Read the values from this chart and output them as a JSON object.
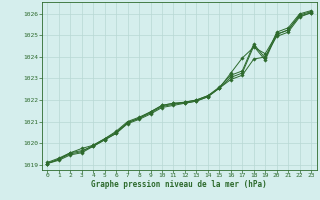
{
  "x": [
    0,
    1,
    2,
    3,
    4,
    5,
    6,
    7,
    8,
    9,
    10,
    11,
    12,
    13,
    14,
    15,
    16,
    17,
    18,
    19,
    20,
    21,
    22,
    23
  ],
  "line1": [
    1019.1,
    1019.3,
    1019.55,
    1019.65,
    1019.85,
    1020.15,
    1020.45,
    1020.95,
    1021.15,
    1021.45,
    1021.75,
    1021.85,
    1021.9,
    1022.0,
    1022.2,
    1022.55,
    1022.95,
    1023.15,
    1023.9,
    1024.0,
    1024.95,
    1025.15,
    1025.85,
    1026.05
  ],
  "line2": [
    1019.05,
    1019.25,
    1019.55,
    1019.75,
    1019.9,
    1020.2,
    1020.55,
    1021.0,
    1021.2,
    1021.45,
    1021.75,
    1021.85,
    1021.85,
    1021.95,
    1022.15,
    1022.55,
    1023.25,
    1023.95,
    1024.45,
    1024.15,
    1025.05,
    1025.25,
    1025.95,
    1026.1
  ],
  "line3": [
    1019.05,
    1019.25,
    1019.5,
    1019.6,
    1019.9,
    1020.2,
    1020.5,
    1020.95,
    1021.15,
    1021.4,
    1021.7,
    1021.8,
    1021.9,
    1022.0,
    1022.2,
    1022.6,
    1023.15,
    1023.35,
    1024.6,
    1023.95,
    1025.15,
    1025.35,
    1026.0,
    1026.15
  ],
  "line4": [
    1019.05,
    1019.2,
    1019.45,
    1019.55,
    1019.85,
    1020.15,
    1020.45,
    1020.9,
    1021.1,
    1021.35,
    1021.65,
    1021.75,
    1021.85,
    1021.95,
    1022.15,
    1022.55,
    1023.05,
    1023.25,
    1024.5,
    1023.85,
    1025.05,
    1025.25,
    1025.9,
    1026.05
  ],
  "line_color": "#2d6a2d",
  "bg_color": "#d5eeed",
  "grid_color": "#b8d8d4",
  "xlabel": "Graphe pression niveau de la mer (hPa)",
  "ylim": [
    1018.75,
    1026.55
  ],
  "xlim": [
    -0.5,
    23.5
  ],
  "yticks": [
    1019,
    1020,
    1021,
    1022,
    1023,
    1024,
    1025,
    1026
  ],
  "xticks": [
    0,
    1,
    2,
    3,
    4,
    5,
    6,
    7,
    8,
    9,
    10,
    11,
    12,
    13,
    14,
    15,
    16,
    17,
    18,
    19,
    20,
    21,
    22,
    23
  ]
}
